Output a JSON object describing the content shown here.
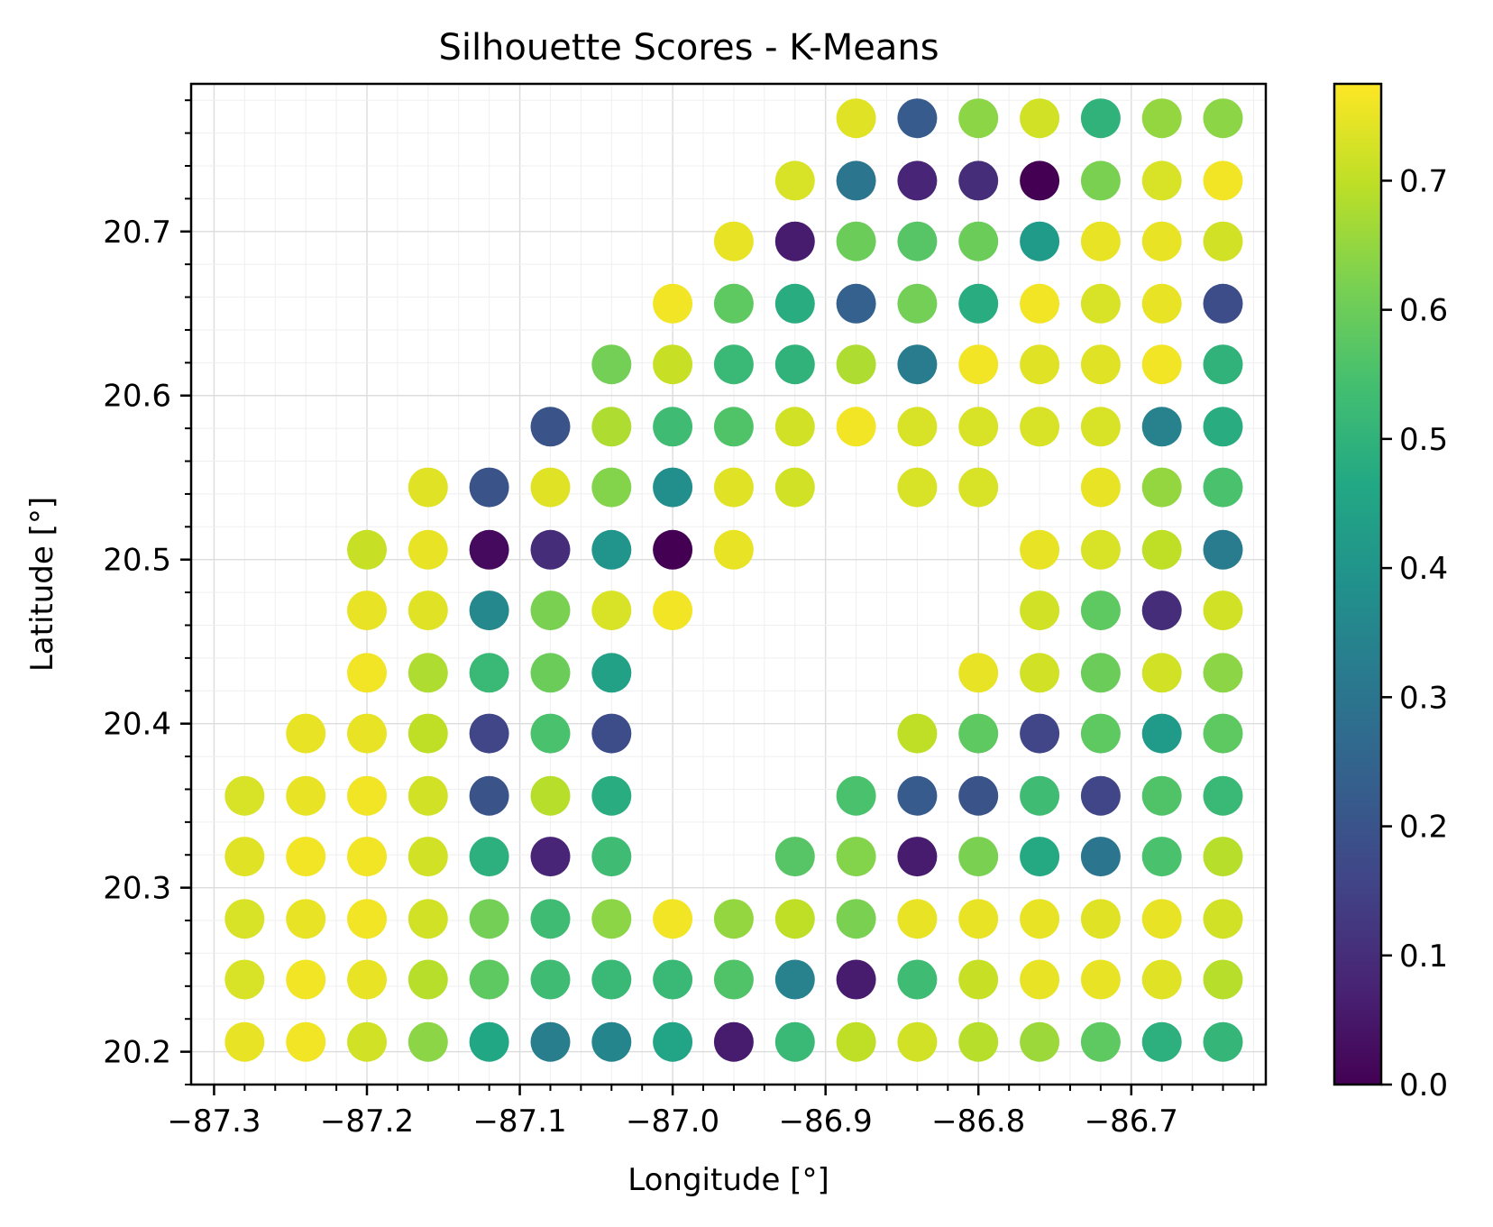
{
  "chart_data": {
    "type": "scatter",
    "title": "Silhouette Scores - K-Means",
    "xlabel": "Longitude [°]",
    "ylabel": "Latitude [°]",
    "xlim": [
      -87.315,
      -86.612
    ],
    "ylim": [
      20.18,
      20.79
    ],
    "xticks": [
      -87.3,
      -87.2,
      -87.1,
      -87.0,
      -86.9,
      -86.8,
      -86.7
    ],
    "xtick_labels": [
      "−87.3",
      "−87.2",
      "−87.1",
      "−87.0",
      "−86.9",
      "−86.8",
      "−86.7"
    ],
    "yticks": [
      20.2,
      20.3,
      20.4,
      20.5,
      20.6,
      20.7
    ],
    "ytick_labels": [
      "20.2",
      "20.3",
      "20.4",
      "20.5",
      "20.6",
      "20.7"
    ],
    "grid": true,
    "colormap": "viridis",
    "colorbar": {
      "range": [
        0.0,
        0.775
      ],
      "ticks": [
        0.0,
        0.1,
        0.2,
        0.3,
        0.4,
        0.5,
        0.6,
        0.7
      ],
      "tick_labels": [
        "0.0",
        "0.1",
        "0.2",
        "0.3",
        "0.4",
        "0.5",
        "0.6",
        "0.7"
      ]
    },
    "lon_grid": [
      -87.28,
      -87.24,
      -87.2,
      -87.16,
      -87.12,
      -87.08,
      -87.04,
      -87.0,
      -86.96,
      -86.92,
      -86.88,
      -86.84,
      -86.8,
      -86.76,
      -86.72,
      -86.68,
      -86.64
    ],
    "rows": [
      {
        "lat": 20.769,
        "values": [
          null,
          null,
          null,
          null,
          null,
          null,
          null,
          null,
          null,
          null,
          0.74,
          0.22,
          0.64,
          0.72,
          0.5,
          0.65,
          0.64
        ]
      },
      {
        "lat": 20.731,
        "values": [
          null,
          null,
          null,
          null,
          null,
          null,
          null,
          null,
          null,
          0.73,
          0.3,
          0.08,
          0.1,
          0.0,
          0.62,
          0.73,
          0.76
        ]
      },
      {
        "lat": 20.694,
        "values": [
          null,
          null,
          null,
          null,
          null,
          null,
          null,
          null,
          0.75,
          0.06,
          0.6,
          0.57,
          0.6,
          0.42,
          0.75,
          0.75,
          0.72
        ]
      },
      {
        "lat": 20.656,
        "values": [
          null,
          null,
          null,
          null,
          null,
          null,
          null,
          0.76,
          0.58,
          0.48,
          0.24,
          0.61,
          0.48,
          0.76,
          0.73,
          0.75,
          0.18
        ]
      },
      {
        "lat": 20.619,
        "values": [
          null,
          null,
          null,
          null,
          null,
          null,
          0.61,
          0.71,
          0.52,
          0.5,
          0.68,
          0.32,
          0.76,
          0.74,
          0.74,
          0.76,
          0.5
        ]
      },
      {
        "lat": 20.581,
        "values": [
          null,
          null,
          null,
          null,
          null,
          0.2,
          0.68,
          0.53,
          0.56,
          0.72,
          0.76,
          0.73,
          0.73,
          0.73,
          0.73,
          0.34,
          0.48
        ]
      },
      {
        "lat": 20.544,
        "values": [
          null,
          null,
          null,
          0.74,
          0.2,
          0.74,
          0.63,
          0.38,
          0.74,
          0.72,
          null,
          0.73,
          0.73,
          null,
          0.75,
          0.65,
          0.55
        ]
      },
      {
        "lat": 20.506,
        "values": [
          null,
          null,
          0.71,
          0.75,
          0.02,
          0.1,
          0.4,
          0.0,
          0.75,
          null,
          null,
          null,
          null,
          0.75,
          0.73,
          0.7,
          0.32
        ]
      },
      {
        "lat": 20.469,
        "values": [
          null,
          null,
          0.75,
          0.74,
          0.36,
          0.62,
          0.73,
          0.76,
          null,
          null,
          null,
          null,
          null,
          0.72,
          0.58,
          0.1,
          0.72
        ]
      },
      {
        "lat": 20.431,
        "values": [
          null,
          null,
          0.76,
          0.68,
          0.52,
          0.6,
          0.44,
          null,
          null,
          null,
          null,
          null,
          0.75,
          0.72,
          0.6,
          0.72,
          0.64
        ]
      },
      {
        "lat": 20.394,
        "values": [
          null,
          0.75,
          0.75,
          0.7,
          0.16,
          0.55,
          0.18,
          null,
          null,
          null,
          null,
          0.7,
          0.58,
          0.16,
          0.58,
          0.42,
          0.58
        ]
      },
      {
        "lat": 20.356,
        "values": [
          0.73,
          0.75,
          0.76,
          0.72,
          0.2,
          0.69,
          0.48,
          null,
          null,
          null,
          0.55,
          0.22,
          0.2,
          0.53,
          0.16,
          0.56,
          0.52
        ]
      },
      {
        "lat": 20.319,
        "values": [
          0.74,
          0.76,
          0.76,
          0.72,
          0.49,
          0.08,
          0.53,
          null,
          null,
          0.57,
          0.63,
          0.06,
          0.62,
          0.47,
          0.3,
          0.55,
          0.69
        ]
      },
      {
        "lat": 20.281,
        "values": [
          0.73,
          0.75,
          0.76,
          0.72,
          0.61,
          0.53,
          0.64,
          0.76,
          0.65,
          0.7,
          0.62,
          0.75,
          0.75,
          0.75,
          0.74,
          0.75,
          0.72
        ]
      },
      {
        "lat": 20.244,
        "values": [
          0.73,
          0.76,
          0.75,
          0.69,
          0.58,
          0.53,
          0.52,
          0.52,
          0.56,
          0.34,
          0.06,
          0.53,
          0.71,
          0.75,
          0.75,
          0.74,
          0.69
        ]
      },
      {
        "lat": 20.206,
        "values": [
          0.75,
          0.76,
          0.72,
          0.64,
          0.46,
          0.33,
          0.35,
          0.45,
          0.06,
          0.52,
          0.7,
          0.72,
          0.69,
          0.66,
          0.58,
          0.49,
          0.51
        ]
      }
    ]
  }
}
